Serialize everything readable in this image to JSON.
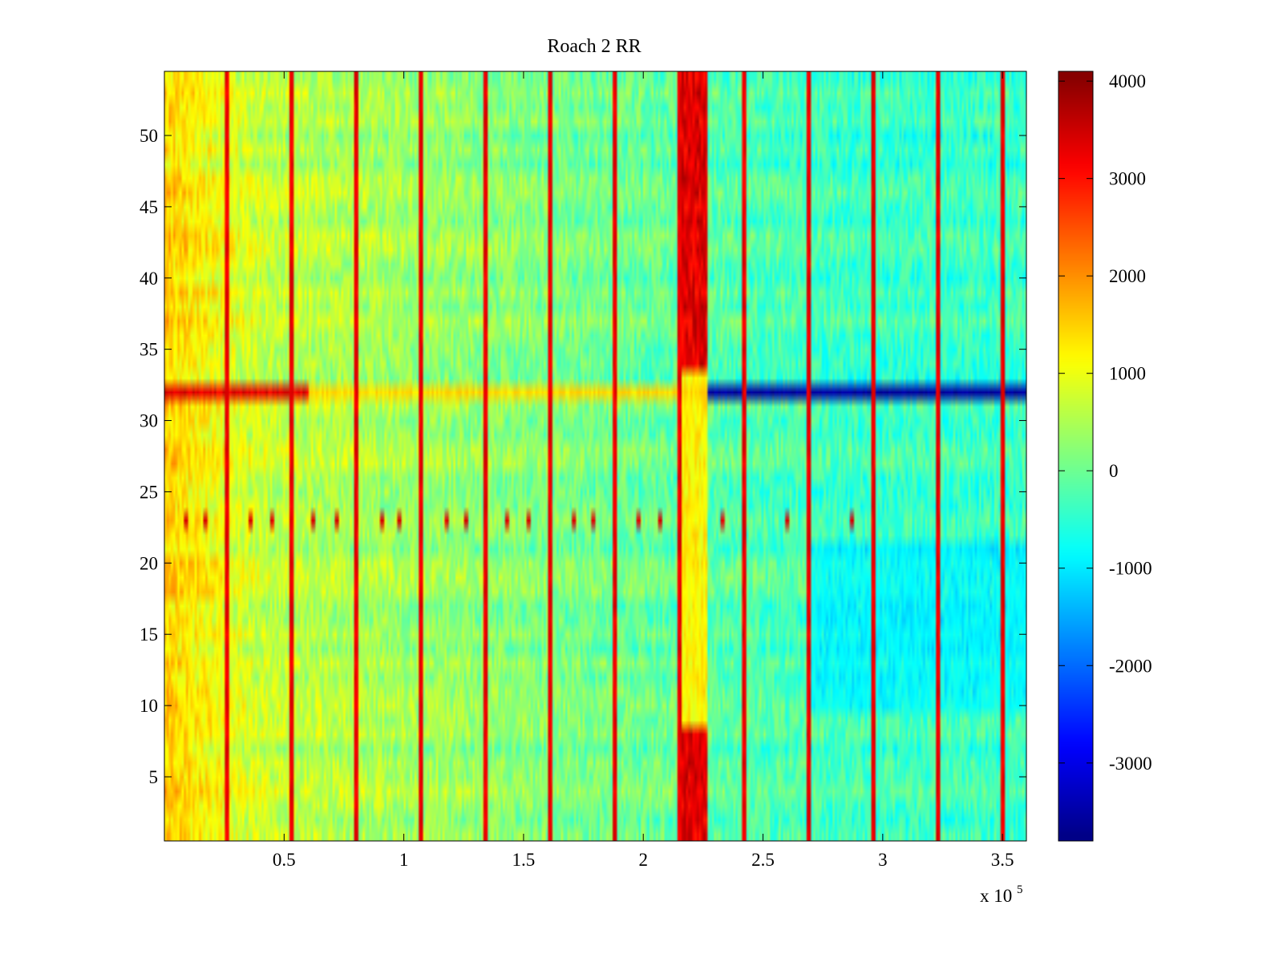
{
  "chart_data": {
    "type": "heatmap",
    "title": "Roach 2 RR",
    "xlabel": "",
    "ylabel": "",
    "x_range": [
      0,
      360000
    ],
    "y_range": [
      0.5,
      54.5
    ],
    "x_ticks": [
      0.5,
      1,
      1.5,
      2,
      2.5,
      3,
      3.5
    ],
    "x_tick_labels": [
      "0.5",
      "1",
      "1.5",
      "2",
      "2.5",
      "3",
      "3.5"
    ],
    "x_exponent_label": "x 10",
    "x_exponent_power": "5",
    "y_ticks": [
      5,
      10,
      15,
      20,
      25,
      30,
      35,
      40,
      45,
      50
    ],
    "y_tick_labels": [
      "5",
      "10",
      "15",
      "20",
      "25",
      "30",
      "35",
      "40",
      "45",
      "50"
    ],
    "rows": 54,
    "columns": 400,
    "colormap": "jet",
    "colorbar": {
      "range": [
        -3800,
        4100
      ],
      "ticks": [
        4000,
        3000,
        2000,
        1000,
        0,
        -1000,
        -2000,
        -3000
      ],
      "tick_labels": [
        "4000",
        "3000",
        "2000",
        "1000",
        "0",
        "-1000",
        "-2000",
        "-3000"
      ]
    },
    "features": {
      "baseline_early": 900,
      "baseline_late": -400,
      "hot_band": {
        "x_start": 215000,
        "x_end": 227000,
        "value": 3800,
        "row_ranges": [
          [
            1,
            8
          ],
          [
            34,
            54
          ]
        ],
        "mid_value": 1200
      },
      "row_32": {
        "early_value": 3600,
        "late_value": -3700,
        "switch_x": 227000
      },
      "periodic_spikes_x": [
        26000,
        53000,
        80000,
        107000,
        134000,
        161000,
        188000,
        215000,
        242000,
        269000,
        296000,
        323000,
        350000
      ],
      "spike_value": 3500,
      "row_23_spikes_x": [
        9000,
        17000,
        36000,
        45000,
        62000,
        72000,
        91000,
        98000,
        118000,
        126000,
        143000,
        152000,
        171000,
        179000,
        198000,
        207000,
        233000,
        260000,
        287000
      ],
      "lower_right_region": {
        "x_start": 270000,
        "rows": [
          10,
          21
        ],
        "value": -1300
      }
    }
  }
}
